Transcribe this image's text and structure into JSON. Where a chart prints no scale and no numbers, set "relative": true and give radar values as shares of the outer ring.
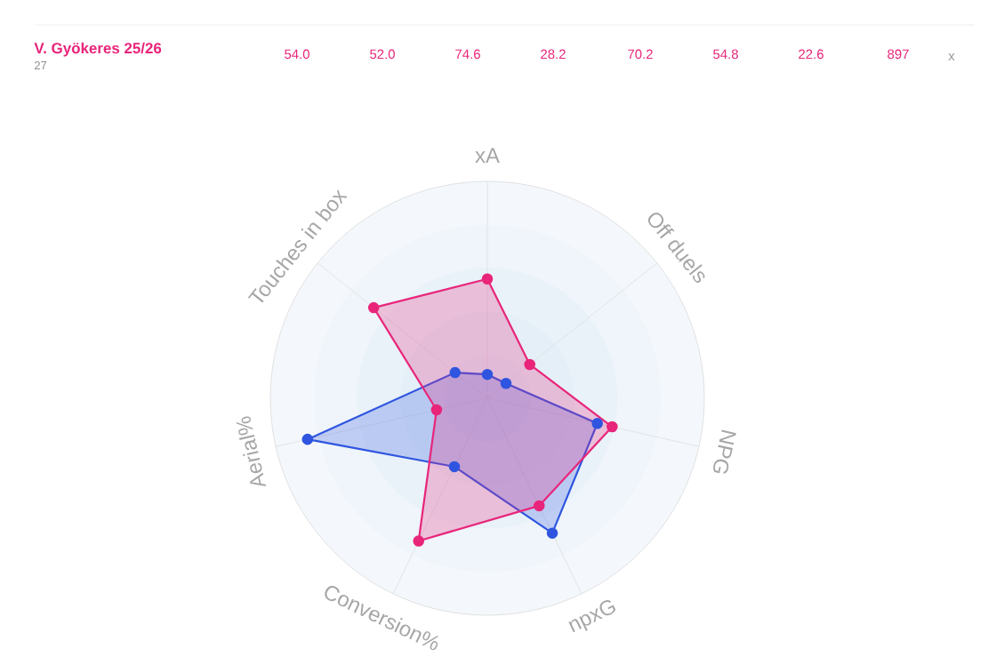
{
  "chart_data": {
    "type": "radar",
    "relative": true,
    "grid": true,
    "marker": "circle",
    "categories": [
      "xA",
      "Off duels",
      "NPG",
      "npxG",
      "Conversion%",
      "Aerial%",
      "Touches in box"
    ],
    "series": [
      {
        "color": "#2f55e0",
        "values": [
          0.11,
          0.11,
          0.52,
          0.69,
          0.35,
          0.85,
          0.19
        ]
      },
      {
        "name": "V. Gyökeres 25/26",
        "color": "#e8257a",
        "values": [
          0.55,
          0.25,
          0.59,
          0.55,
          0.73,
          0.24,
          0.67
        ]
      }
    ],
    "annotations": [
      "27",
      "54.0",
      "52.0",
      "74.6",
      "28.2",
      "70.2",
      "54.8",
      "22.6",
      "897",
      "x"
    ]
  }
}
